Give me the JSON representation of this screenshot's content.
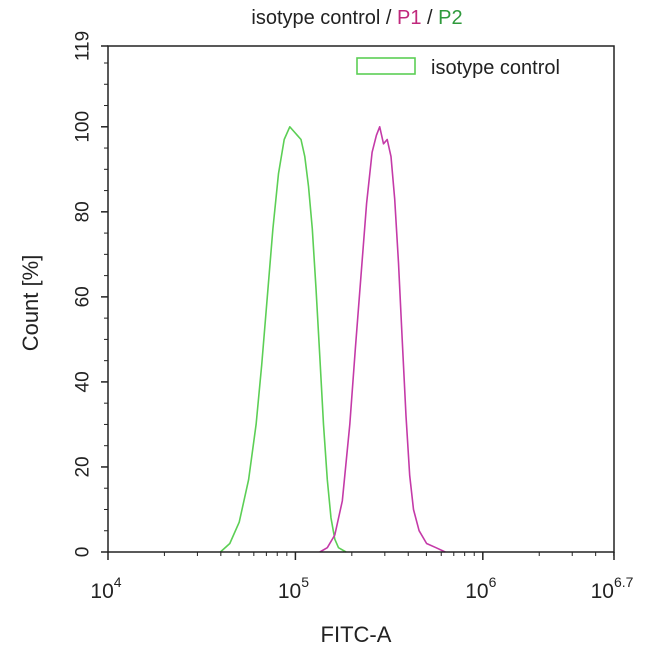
{
  "chart_data": {
    "type": "line",
    "title": {
      "parts": [
        {
          "text": "isotype control",
          "color": "#222222"
        },
        {
          "text": " / ",
          "color": "#222222"
        },
        {
          "text": "P1",
          "color": "#c0287c"
        },
        {
          "text": " / ",
          "color": "#222222"
        },
        {
          "text": "P2",
          "color": "#2f9a3c"
        }
      ]
    },
    "xlabel": "FITC-A",
    "ylabel": "Count [%]",
    "xscale": "log",
    "xlim": [
      10000,
      5011872
    ],
    "ylim": [
      0,
      119
    ],
    "x_ticks": [
      {
        "base": "10",
        "exp": "4",
        "value": 10000
      },
      {
        "base": "10",
        "exp": "5",
        "value": 100000
      },
      {
        "base": "10",
        "exp": "6",
        "value": 1000000
      },
      {
        "base": "10",
        "exp": "6.7",
        "value": 5011872
      }
    ],
    "y_ticks": [
      "0",
      "20",
      "40",
      "60",
      "80",
      "100",
      "119"
    ],
    "legend": {
      "position": "top-right",
      "entries": [
        {
          "label": "isotype control",
          "color": "#5ccf55"
        }
      ]
    },
    "grid": false,
    "series": [
      {
        "name": "isotype control",
        "color": "#5ccf55",
        "points": [
          [
            39811,
            0
          ],
          [
            44668,
            2
          ],
          [
            50119,
            7
          ],
          [
            56234,
            17
          ],
          [
            61660,
            30
          ],
          [
            66069,
            44
          ],
          [
            70795,
            60
          ],
          [
            75858,
            76
          ],
          [
            81283,
            89
          ],
          [
            87096,
            97
          ],
          [
            93325,
            100
          ],
          [
            97724,
            99
          ],
          [
            102329,
            98
          ],
          [
            107152,
            97
          ],
          [
            112202,
            93
          ],
          [
            117490,
            86
          ],
          [
            123027,
            76
          ],
          [
            128825,
            62
          ],
          [
            134896,
            46
          ],
          [
            141254,
            30
          ],
          [
            147911,
            17
          ],
          [
            154882,
            8
          ],
          [
            162181,
            3
          ],
          [
            169824,
            1
          ],
          [
            186209,
            0
          ]
        ]
      },
      {
        "name": "",
        "color": "#c43aa8",
        "points": [
          [
            134896,
            0
          ],
          [
            147911,
            1
          ],
          [
            162181,
            4
          ],
          [
            177828,
            12
          ],
          [
            194984,
            30
          ],
          [
            208930,
            48
          ],
          [
            223872,
            65
          ],
          [
            239883,
            82
          ],
          [
            256448,
            94
          ],
          [
            270396,
            98
          ],
          [
            281838,
            100
          ],
          [
            295121,
            96
          ],
          [
            309030,
            97
          ],
          [
            323594,
            93
          ],
          [
            338844,
            83
          ],
          [
            354813,
            68
          ],
          [
            371535,
            50
          ],
          [
            389045,
            32
          ],
          [
            407380,
            18
          ],
          [
            426580,
            10
          ],
          [
            457088,
            5
          ],
          [
            501187,
            2
          ],
          [
            562341,
            1
          ],
          [
            630957,
            0
          ]
        ]
      }
    ]
  }
}
